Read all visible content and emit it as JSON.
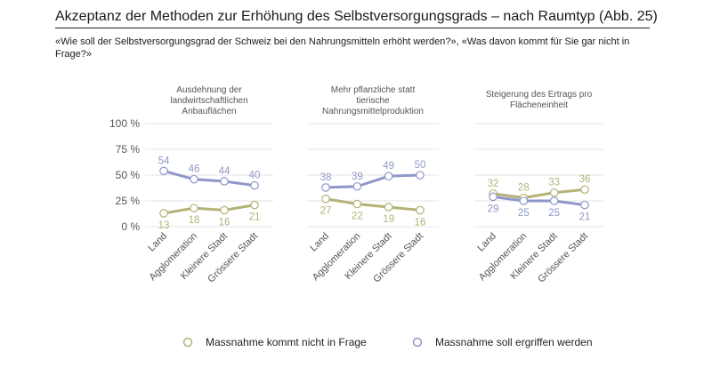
{
  "header": {
    "title": "Akzeptanz der Methoden zur Erhöhung des Selbstversorgungsgrads – nach Raumtyp (Abb. 25)",
    "subtitle": "«Wie soll der Selbstversorgungsgrad der Schweiz bei den Nahrungsmitteln erhöht werden?», «Was davon kommt für Sie gar nicht in Frage?»"
  },
  "colors": {
    "nicht": "#b3b276",
    "ergriffen": "#8f97c9",
    "text": "#555555",
    "grid": "#e4e4e4"
  },
  "chart_data": {
    "type": "line",
    "ylim": [
      0,
      100
    ],
    "yticks": [
      "0 %",
      "25 %",
      "50 %",
      "75 %",
      "100 %"
    ],
    "categories": [
      "Land",
      "Agglomeration",
      "Kleinere Stadt",
      "Grössere Stadt"
    ],
    "legend": [
      "Massnahme kommt nicht in Frage",
      "Massnahme soll ergriffen werden"
    ],
    "panels": [
      {
        "title": "Ausdehnung der landwirtschaftlichen Anbauflächen",
        "title_lines": [
          "Ausdehnung der",
          "landwirtschaftlichen",
          "Anbauflächen"
        ],
        "series": [
          {
            "name": "Massnahme kommt nicht in Frage",
            "values": [
              13,
              18,
              16,
              21
            ]
          },
          {
            "name": "Massnahme soll ergriffen werden",
            "values": [
              54,
              46,
              44,
              40
            ]
          }
        ]
      },
      {
        "title": "Mehr pflanzliche statt tierische Nahrungsmittelproduktion",
        "title_lines": [
          "Mehr pflanzliche statt",
          "tierische",
          "Nahrungsmittelproduktion"
        ],
        "series": [
          {
            "name": "Massnahme kommt nicht in Frage",
            "values": [
              27,
              22,
              19,
              16
            ]
          },
          {
            "name": "Massnahme soll ergriffen werden",
            "values": [
              38,
              39,
              49,
              50
            ]
          }
        ]
      },
      {
        "title": "Steigerung des Ertrags pro Flächeneinheit",
        "title_lines": [
          "Steigerung des Ertrags pro",
          "Flächeneinheit"
        ],
        "series": [
          {
            "name": "Massnahme kommt nicht in Frage",
            "values": [
              32,
              28,
              33,
              36
            ]
          },
          {
            "name": "Massnahme soll ergriffen werden",
            "values": [
              29,
              25,
              25,
              21
            ]
          }
        ]
      }
    ]
  }
}
